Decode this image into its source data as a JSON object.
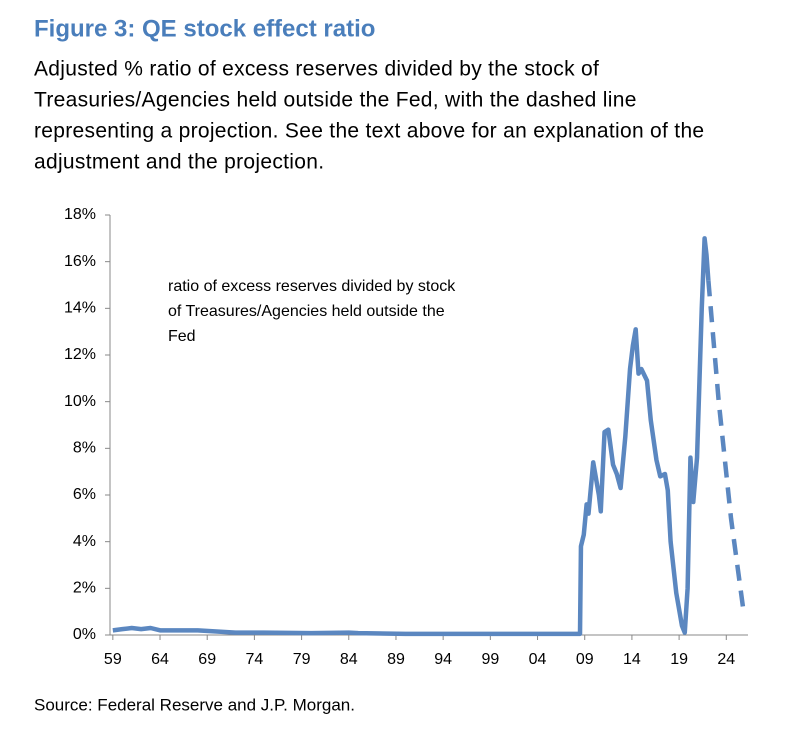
{
  "chart_data": {
    "type": "line",
    "title": "Figure 3: QE stock effect ratio",
    "subtitle": [
      "Adjusted % ratio of excess reserves divided by the stock of",
      "Treasuries/Agencies held outside the Fed, with the dashed line",
      "representing a projection. See the text above for an explanation of the",
      "adjustment and the projection."
    ],
    "annotation": [
      "ratio of excess reserves divided by stock",
      "of Treasures/Agencies held outside the",
      "Fed"
    ],
    "source": "Source: Federal Reserve and J.P. Morgan.",
    "xlim": [
      1958.7,
      2026.3
    ],
    "ylim": [
      0,
      18
    ],
    "xticks": [
      {
        "value": 1959,
        "label": "59"
      },
      {
        "value": 1964,
        "label": "64"
      },
      {
        "value": 1969,
        "label": "69"
      },
      {
        "value": 1974,
        "label": "74"
      },
      {
        "value": 1979,
        "label": "79"
      },
      {
        "value": 1984,
        "label": "84"
      },
      {
        "value": 1989,
        "label": "89"
      },
      {
        "value": 1994,
        "label": "94"
      },
      {
        "value": 1999,
        "label": "99"
      },
      {
        "value": 2004,
        "label": "04"
      },
      {
        "value": 2009,
        "label": "09"
      },
      {
        "value": 2014,
        "label": "14"
      },
      {
        "value": 2019,
        "label": "19"
      },
      {
        "value": 2024,
        "label": "24"
      }
    ],
    "yticks": [
      {
        "value": 0,
        "label": "0%"
      },
      {
        "value": 2,
        "label": "2%"
      },
      {
        "value": 4,
        "label": "4%"
      },
      {
        "value": 6,
        "label": "6%"
      },
      {
        "value": 8,
        "label": "8%"
      },
      {
        "value": 10,
        "label": "10%"
      },
      {
        "value": 12,
        "label": "12%"
      },
      {
        "value": 14,
        "label": "14%"
      },
      {
        "value": 16,
        "label": "16%"
      },
      {
        "value": 18,
        "label": "18%"
      }
    ],
    "grid": false,
    "series": [
      {
        "color": "#5b87c0",
        "dashed": false,
        "x": [
          1959,
          1960,
          1961,
          1962,
          1963,
          1964,
          1966,
          1968,
          1970,
          1972,
          1975,
          1980,
          1984,
          1985,
          1990,
          1995,
          2000,
          2008.5,
          2008.6,
          2008.9,
          2009.2,
          2009.4,
          2009.9,
          2010.5,
          2010.7,
          2011.1,
          2011.5,
          2012.0,
          2012.4,
          2012.8,
          2013.3,
          2013.8,
          2014.1,
          2014.4,
          2014.7,
          2015.0,
          2015.6,
          2016.0,
          2016.6,
          2017.0,
          2017.5,
          2017.8,
          2018.1,
          2018.7,
          2019.3,
          2019.6,
          2019.9,
          2020.2,
          2020.5,
          2020.9,
          2021.4,
          2021.7,
          2021.9,
          2022.1
        ],
        "values": [
          0.2,
          0.25,
          0.3,
          0.25,
          0.3,
          0.2,
          0.2,
          0.2,
          0.15,
          0.1,
          0.1,
          0.08,
          0.1,
          0.08,
          0.05,
          0.05,
          0.05,
          0.05,
          3.8,
          4.3,
          5.6,
          5.2,
          7.4,
          6.0,
          5.3,
          8.7,
          8.8,
          7.3,
          6.9,
          6.3,
          8.5,
          11.4,
          12.4,
          13.1,
          11.2,
          11.4,
          10.9,
          9.2,
          7.5,
          6.8,
          6.9,
          6.2,
          4.0,
          1.8,
          0.4,
          0.1,
          2.0,
          7.6,
          5.7,
          7.6,
          14.0,
          17.0,
          16.3,
          15.2
        ]
      },
      {
        "color": "#5b87c0",
        "dashed": true,
        "x": [
          2022.1,
          2023.2,
          2024.5,
          2025.9
        ],
        "values": [
          15.2,
          10,
          5,
          0.8
        ]
      }
    ]
  }
}
